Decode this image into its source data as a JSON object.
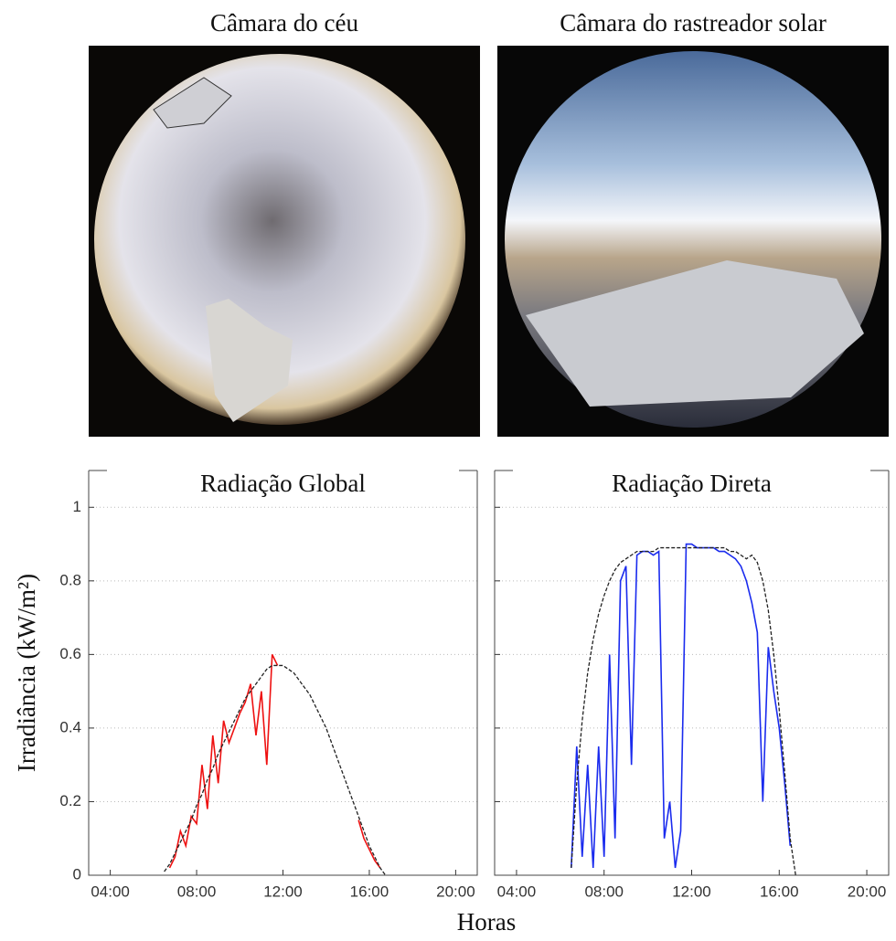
{
  "images": [
    {
      "title": "Câmara do céu"
    },
    {
      "title": "Câmara do rastreador solar"
    }
  ],
  "chart_data": [
    {
      "type": "line",
      "title": "Radiação Global",
      "ylabel": "Irradiância (kW/m²)",
      "xlabel": "Horas",
      "xlim": [
        3,
        21
      ],
      "ylim": [
        0,
        1.1
      ],
      "xticks": [
        {
          "value": 4,
          "label": "04:00"
        },
        {
          "value": 8,
          "label": "08:00"
        },
        {
          "value": 12,
          "label": "12:00"
        },
        {
          "value": 16,
          "label": "16:00"
        },
        {
          "value": 20,
          "label": "20:00"
        }
      ],
      "yticks": [
        0,
        0.2,
        0.4,
        0.6,
        0.8,
        1
      ],
      "grid": true,
      "x": [
        6.5,
        6.75,
        7,
        7.25,
        7.5,
        7.75,
        8,
        8.25,
        8.5,
        8.75,
        9,
        9.25,
        9.5,
        9.75,
        10,
        10.25,
        10.5,
        10.75,
        11,
        11.25,
        11.5,
        11.75,
        12,
        12.25,
        12.5,
        12.75,
        13,
        13.25,
        13.5,
        13.75,
        14,
        14.25,
        14.5,
        14.75,
        15,
        15.25,
        15.5,
        15.75,
        16,
        16.25,
        16.5,
        16.75,
        17
      ],
      "series": [
        {
          "color": "#ee1111",
          "linestyle": "solid",
          "values": [
            null,
            0.02,
            0.05,
            0.12,
            0.08,
            0.16,
            0.14,
            0.3,
            0.18,
            0.38,
            0.25,
            0.42,
            0.36,
            0.4,
            0.44,
            0.47,
            0.52,
            0.38,
            0.5,
            0.3,
            0.6,
            0.57,
            null,
            null,
            null,
            null,
            null,
            null,
            null,
            null,
            null,
            null,
            null,
            null,
            null,
            null,
            0.15,
            0.1,
            0.07,
            0.04,
            0.02,
            null,
            null
          ]
        },
        {
          "color": "#222222",
          "linestyle": "dashed",
          "values": [
            0.01,
            0.03,
            0.06,
            0.09,
            0.12,
            0.15,
            0.19,
            0.22,
            0.26,
            0.29,
            0.33,
            0.36,
            0.39,
            0.42,
            0.45,
            0.48,
            0.5,
            0.52,
            0.54,
            0.56,
            0.57,
            0.57,
            0.57,
            0.56,
            0.55,
            0.53,
            0.51,
            0.49,
            0.46,
            0.43,
            0.4,
            0.36,
            0.32,
            0.28,
            0.24,
            0.2,
            0.16,
            0.12,
            0.08,
            0.05,
            0.02,
            0,
            null
          ]
        }
      ]
    },
    {
      "type": "line",
      "title": "Radiação Direta",
      "xlim": [
        3,
        21
      ],
      "ylim": [
        0,
        1.1
      ],
      "xticks": [
        {
          "value": 4,
          "label": "04:00"
        },
        {
          "value": 8,
          "label": "08:00"
        },
        {
          "value": 12,
          "label": "12:00"
        },
        {
          "value": 16,
          "label": "16:00"
        },
        {
          "value": 20,
          "label": "20:00"
        }
      ],
      "yticks": [
        0,
        0.2,
        0.4,
        0.6,
        0.8,
        1
      ],
      "grid": true,
      "x": [
        6.5,
        6.75,
        7,
        7.25,
        7.5,
        7.75,
        8,
        8.25,
        8.5,
        8.75,
        9,
        9.25,
        9.5,
        9.75,
        10,
        10.25,
        10.5,
        10.75,
        11,
        11.25,
        11.5,
        11.75,
        12,
        12.25,
        12.5,
        12.75,
        13,
        13.25,
        13.5,
        13.75,
        14,
        14.25,
        14.5,
        14.75,
        15,
        15.25,
        15.5,
        15.75,
        16,
        16.25,
        16.5,
        16.75,
        17
      ],
      "series": [
        {
          "color": "#1a2bee",
          "linestyle": "solid",
          "values": [
            0.02,
            0.35,
            0.05,
            0.3,
            0.02,
            0.35,
            0.05,
            0.6,
            0.1,
            0.8,
            0.84,
            0.3,
            0.87,
            0.88,
            0.88,
            0.87,
            0.88,
            0.1,
            0.2,
            0.02,
            0.12,
            0.9,
            0.9,
            0.89,
            0.89,
            0.89,
            0.89,
            0.88,
            0.88,
            0.87,
            0.86,
            0.84,
            0.8,
            0.74,
            0.66,
            0.2,
            0.62,
            0.5,
            0.4,
            0.25,
            0.08,
            null,
            null
          ]
        },
        {
          "color": "#222222",
          "linestyle": "dashed",
          "values": [
            0.02,
            0.25,
            0.42,
            0.55,
            0.64,
            0.71,
            0.76,
            0.8,
            0.83,
            0.85,
            0.86,
            0.87,
            0.88,
            0.88,
            0.88,
            0.88,
            0.89,
            0.89,
            0.89,
            0.89,
            0.89,
            0.89,
            0.89,
            0.89,
            0.89,
            0.89,
            0.89,
            0.89,
            0.89,
            0.88,
            0.88,
            0.87,
            0.86,
            0.87,
            0.85,
            0.8,
            0.72,
            0.6,
            0.45,
            0.28,
            0.1,
            0,
            null
          ]
        }
      ]
    }
  ]
}
